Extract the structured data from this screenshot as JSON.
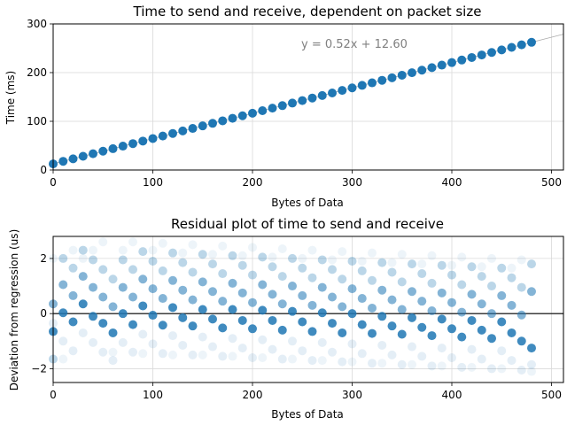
{
  "chart_data": [
    {
      "type": "scatter",
      "title": "Time to send and receive, dependent on packet size",
      "xlabel": "Bytes of Data",
      "ylabel": "Time (ms)",
      "xlim": [
        0,
        512
      ],
      "ylim": [
        0,
        300
      ],
      "xticks": [
        0,
        100,
        200,
        300,
        400,
        500
      ],
      "yticks": [
        0,
        100,
        200,
        300
      ],
      "grid": true,
      "color": "#1f77b4",
      "fit_line": {
        "slope": 0.52,
        "intercept": 12.6,
        "color": "#aaaaaa"
      },
      "annotation": "y = 0.52x + 12.60",
      "x_start": 0,
      "x_step": 10,
      "x_count": 49
    },
    {
      "type": "scatter",
      "title": "Residual plot of time to send and receive",
      "xlabel": "Bytes of Data",
      "ylabel": "Deviation from regression (us)",
      "xlim": [
        0,
        512
      ],
      "ylim": [
        -2.5,
        2.8
      ],
      "xticks": [
        0,
        100,
        200,
        300,
        400,
        500
      ],
      "yticks": [
        -2,
        0,
        2
      ],
      "grid": true,
      "zero_line": true,
      "color": "#1f77b4",
      "x_start": 0,
      "x_step": 10,
      "x_count": 49,
      "bands": [
        {
          "name": "",
          "opacity": 0.85,
          "y": [
            -0.65,
            0.03,
            -0.3,
            0.35,
            -0.1,
            -0.35,
            -0.7,
            0.0,
            -0.4,
            0.28,
            -0.06,
            -0.42,
            0.22,
            -0.15,
            -0.45,
            0.15,
            -0.2,
            -0.52,
            0.15,
            -0.25,
            -0.55,
            0.12,
            -0.25,
            -0.6,
            0.08,
            -0.3,
            -0.65,
            0.03,
            -0.35,
            -0.7,
            0.0,
            -0.4,
            -0.72,
            -0.1,
            -0.45,
            -0.75,
            -0.15,
            -0.5,
            -0.8,
            -0.2,
            -0.55,
            -0.85,
            -0.25,
            -0.6,
            -0.9,
            -0.3,
            -0.7,
            -1.0,
            -1.25
          ]
        },
        {
          "name": "",
          "opacity": 0.55,
          "y": [
            0.35,
            1.05,
            0.65,
            1.35,
            0.95,
            0.6,
            0.25,
            0.95,
            0.6,
            1.25,
            0.9,
            0.55,
            1.2,
            0.85,
            0.5,
            1.15,
            0.8,
            0.45,
            1.1,
            0.75,
            0.4,
            1.05,
            0.7,
            0.35,
            1.0,
            0.65,
            0.3,
            0.95,
            0.6,
            0.25,
            0.9,
            0.55,
            0.2,
            0.85,
            0.5,
            0.15,
            0.8,
            0.45,
            0.1,
            0.75,
            0.4,
            0.05,
            0.7,
            0.35,
            0.0,
            0.65,
            0.3,
            -0.05,
            0.8
          ]
        },
        {
          "name": "",
          "opacity": 0.3,
          "y": [
            -1.65,
            2.0,
            1.65,
            2.3,
            1.95,
            1.6,
            1.25,
            1.95,
            1.6,
            2.25,
            1.9,
            1.55,
            2.2,
            1.85,
            1.5,
            2.15,
            1.8,
            1.45,
            2.1,
            1.75,
            1.4,
            2.05,
            1.7,
            1.35,
            2.0,
            1.65,
            1.3,
            1.95,
            1.6,
            1.25,
            1.9,
            1.55,
            1.2,
            1.85,
            1.5,
            1.15,
            1.8,
            1.45,
            1.1,
            1.75,
            1.4,
            1.05,
            1.7,
            1.35,
            1.0,
            1.65,
            1.3,
            0.95,
            1.8
          ]
        },
        {
          "name": "",
          "opacity": 0.12,
          "y": [
            -0.35,
            -1.0,
            -1.35,
            -0.7,
            -1.05,
            -1.4,
            -1.7,
            -1.05,
            -1.4,
            -0.75,
            -1.1,
            -1.45,
            -0.8,
            -1.15,
            -1.5,
            -0.85,
            -1.2,
            -1.55,
            -0.9,
            -1.25,
            -1.6,
            -0.95,
            -1.3,
            -1.65,
            -1.0,
            -1.35,
            -1.7,
            -1.05,
            -1.4,
            -1.75,
            -1.1,
            -1.45,
            -1.8,
            -1.15,
            -1.5,
            -1.85,
            -1.2,
            -1.55,
            -1.9,
            -1.25,
            -1.6,
            -1.95,
            -1.3,
            -1.65,
            -2.0,
            -1.35,
            -1.7,
            -2.05,
            -1.85
          ]
        },
        {
          "name": "",
          "opacity": 0.08,
          "y": [
            2.0,
            -1.65,
            2.3,
            2.0,
            2.3,
            2.6,
            -1.4,
            2.3,
            2.6,
            -1.45,
            2.3,
            2.55,
            -1.5,
            2.2,
            2.5,
            -1.5,
            2.15,
            2.45,
            -1.55,
            2.1,
            2.4,
            -1.6,
            2.05,
            2.35,
            -1.65,
            2.0,
            2.3,
            -1.7,
            1.95,
            2.25,
            -1.75,
            1.9,
            2.2,
            -1.8,
            1.85,
            2.15,
            -1.85,
            1.8,
            2.1,
            -1.9,
            1.75,
            2.05,
            -1.95,
            1.7,
            2.0,
            -2.0,
            1.65,
            1.95,
            -2.1
          ]
        }
      ]
    }
  ]
}
